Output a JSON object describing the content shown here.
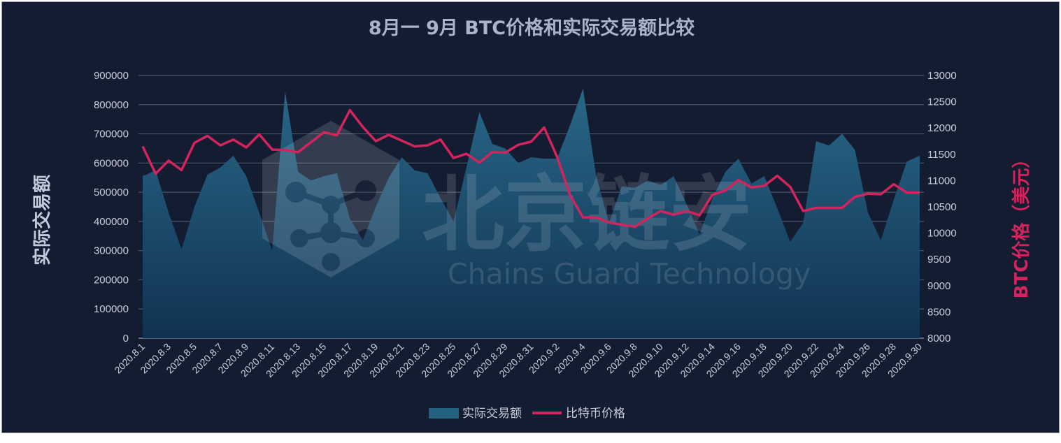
{
  "chart_data": {
    "type": "area+line",
    "title": "8月一 9月 BTC价格和实际交易额比较",
    "ylabel_left": "实际交易额",
    "ylabel_right": "BTC价格（美元）",
    "ylim_left": [
      0,
      900000
    ],
    "yticks_left": [
      0,
      100000,
      200000,
      300000,
      400000,
      500000,
      600000,
      700000,
      800000,
      900000
    ],
    "ylim_right": [
      8000,
      13000
    ],
    "yticks_right": [
      8000,
      8500,
      9000,
      9500,
      10000,
      10500,
      11000,
      11500,
      12000,
      12500,
      13000
    ],
    "grid": true,
    "legend_position": "bottom-center",
    "categories": [
      "2020.8.1",
      "2020.8.2",
      "2020.8.3",
      "2020.8.4",
      "2020.8.5",
      "2020.8.6",
      "2020.8.7",
      "2020.8.8",
      "2020.8.9",
      "2020.8.10",
      "2020.8.11",
      "2020.8.12",
      "2020.8.13",
      "2020.8.14",
      "2020.8.15",
      "2020.8.16",
      "2020.8.17",
      "2020.8.18",
      "2020.8.19",
      "2020.8.20",
      "2020.8.21",
      "2020.8.22",
      "2020.8.23",
      "2020.8.24",
      "2020.8.25",
      "2020.8.26",
      "2020.8.27",
      "2020.8.28",
      "2020.8.29",
      "2020.8.30",
      "2020.8.31",
      "2020.9.1",
      "2020.9.2",
      "2020.9.3",
      "2020.9.4",
      "2020.9.5",
      "2020.9.6",
      "2020.9.7",
      "2020.9.8",
      "2020.9.9",
      "2020.9.10",
      "2020.9.11",
      "2020.9.12",
      "2020.9.13",
      "2020.9.14",
      "2020.9.15",
      "2020.9.16",
      "2020.9.17",
      "2020.9.18",
      "2020.9.19",
      "2020.9.20",
      "2020.9.21",
      "2020.9.22",
      "2020.9.23",
      "2020.9.24",
      "2020.9.25",
      "2020.9.26",
      "2020.9.27",
      "2020.9.28",
      "2020.9.29",
      "2020.9.30"
    ],
    "x_tick_labels": [
      "2020.8.1",
      "2020.8.3",
      "2020.8.5",
      "2020.8.7",
      "2020.8.9",
      "2020.8.11",
      "2020.8.13",
      "2020.8.15",
      "2020.8.17",
      "2020.8.19",
      "2020.8.21",
      "2020.8.23",
      "2020.8.25",
      "2020.8.27",
      "2020.8.29",
      "2020.8.31",
      "2020.9.2",
      "2020.9.4",
      "2020.9.6",
      "2020.9.8",
      "2020.9.10",
      "2020.9.12",
      "2020.9.14",
      "2020.9.16",
      "2020.9.18",
      "2020.9.20",
      "2020.9.22",
      "2020.9.24",
      "2020.9.26",
      "2020.9.28",
      "2020.9.30"
    ],
    "series": [
      {
        "name": "实际交易额",
        "type": "area",
        "axis": "left",
        "color": "#24607f",
        "values": [
          555000,
          575000,
          430000,
          305000,
          450000,
          560000,
          585000,
          625000,
          555000,
          430000,
          300000,
          845000,
          570000,
          540000,
          555000,
          565000,
          410000,
          335000,
          450000,
          550000,
          620000,
          575000,
          565000,
          480000,
          400000,
          585000,
          775000,
          665000,
          650000,
          600000,
          620000,
          615000,
          615000,
          730000,
          855000,
          560000,
          395000,
          520000,
          515000,
          540000,
          525000,
          555000,
          460000,
          355000,
          480000,
          570000,
          615000,
          530000,
          555000,
          445000,
          330000,
          395000,
          675000,
          660000,
          700000,
          645000,
          430000,
          335000,
          475000,
          605000,
          625000
        ]
      },
      {
        "name": "比特币价格",
        "type": "line",
        "axis": "right",
        "color": "#d4245e",
        "values": [
          11650,
          11130,
          11380,
          11200,
          11720,
          11850,
          11670,
          11780,
          11630,
          11880,
          11590,
          11580,
          11540,
          11730,
          11920,
          11860,
          12340,
          12020,
          11750,
          11870,
          11760,
          11650,
          11670,
          11780,
          11430,
          11510,
          11340,
          11540,
          11530,
          11680,
          11740,
          12010,
          11450,
          10720,
          10300,
          10300,
          10200,
          10160,
          10120,
          10280,
          10420,
          10350,
          10420,
          10340,
          10730,
          10810,
          11010,
          10870,
          10900,
          11090,
          10880,
          10420,
          10480,
          10480,
          10480,
          10690,
          10750,
          10740,
          10930,
          10770,
          10770
        ]
      }
    ],
    "watermark": {
      "text_cn": "北京链安",
      "text_en": "Chains Guard Technology"
    }
  }
}
